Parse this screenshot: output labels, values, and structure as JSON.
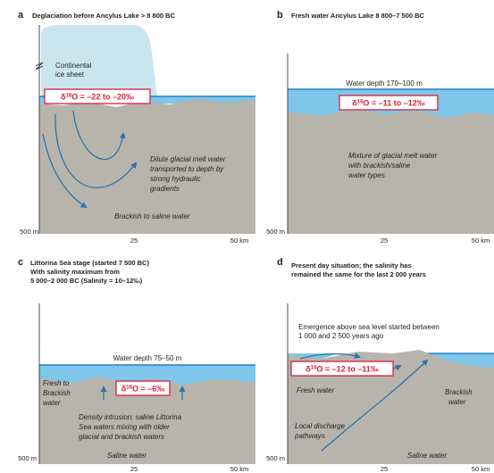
{
  "panels": {
    "a": {
      "letter": "a",
      "title": "Deglaciation before Ancylus Lake > 8 800 BC",
      "ice_label": [
        "Continental",
        "ice sheet"
      ],
      "isotope": "δ18O = –22 to –20‰",
      "desc": [
        "Dilute glacial melt water",
        "transported to depth by",
        "strong hydraulic",
        "gradients"
      ],
      "bottom": "Brackish to saline water",
      "depth": "500 m",
      "x25": "25",
      "x50": "50 km"
    },
    "b": {
      "letter": "b",
      "title": "Fresh water Ancylus Lake 8 800–7 500 BC",
      "water_depth": "Water depth 170–100 m",
      "isotope": "δ18O = –11 to –12‰",
      "desc": [
        "Mixture of glacial melt water",
        "with brackish/saline",
        "water types"
      ],
      "depth": "500 m",
      "x25": "25",
      "x50": "50 km"
    },
    "c": {
      "letter": "c",
      "title": [
        "Littorina Sea stage (started 7 500 BC)",
        "With salinity maximum from",
        "5 000–2 000 BC (Salinity = 10–12‰)"
      ],
      "water_depth": "Water depth 75–50 m",
      "isotope": "δ18O = –6‰",
      "fresh": [
        "Fresh to",
        "Brackish",
        "water"
      ],
      "desc": [
        "Density intrusion; saline Littorina",
        "Sea waters mixing with older",
        "glacial and brackish waters"
      ],
      "bottom": "Saline water",
      "depth": "500 m",
      "x25": "25",
      "x50": "50 km"
    },
    "d": {
      "letter": "d",
      "title": [
        "Present day situation; the salinity has",
        "remained the same for the last 2 000 years"
      ],
      "emergence": [
        "Emergence above sea level started between",
        "1 000 and 2 500 years ago"
      ],
      "isotope": "δ18O = –12 to –11‰",
      "fresh": "Fresh water",
      "brackish": [
        "Brackish",
        "water"
      ],
      "discharge": [
        "Local discharge",
        "pathways"
      ],
      "bottom": "Saline water",
      "depth": "500 m",
      "x25": "25",
      "x50": "50 km"
    }
  },
  "colors": {
    "bedrock": "#b7b5ab",
    "water": "#7ec6ea",
    "water_line": "#2a7fc0",
    "ice": "#c9e6ef",
    "arrow": "#2f6fb0",
    "box_border": "#d8203a"
  }
}
